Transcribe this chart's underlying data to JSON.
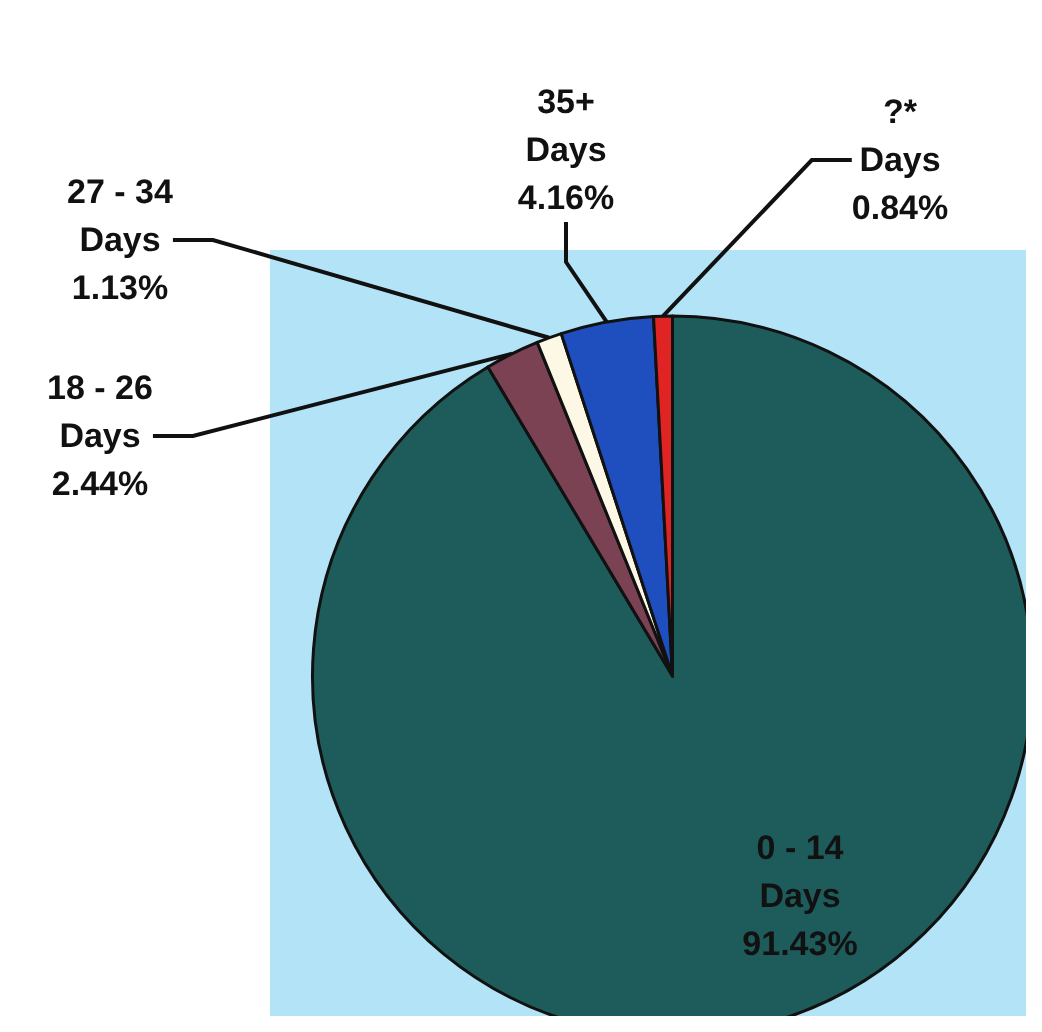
{
  "chart_data": {
    "type": "pie",
    "categories": [
      "0 - 14\nDays",
      "18 - 26\nDays",
      "27 - 34\nDays",
      "35+\nDays",
      "?*\nDays"
    ],
    "values": [
      91.43,
      2.44,
      1.13,
      4.16,
      0.84
    ],
    "colors": [
      "#1e5c5c",
      "#7a4252",
      "#fdf8e6",
      "#1f4fbf",
      "#e02424"
    ],
    "value_labels": [
      "91.43%",
      "2.44%",
      "1.13%",
      "4.16%",
      "0.84%"
    ],
    "legend": false
  }
}
